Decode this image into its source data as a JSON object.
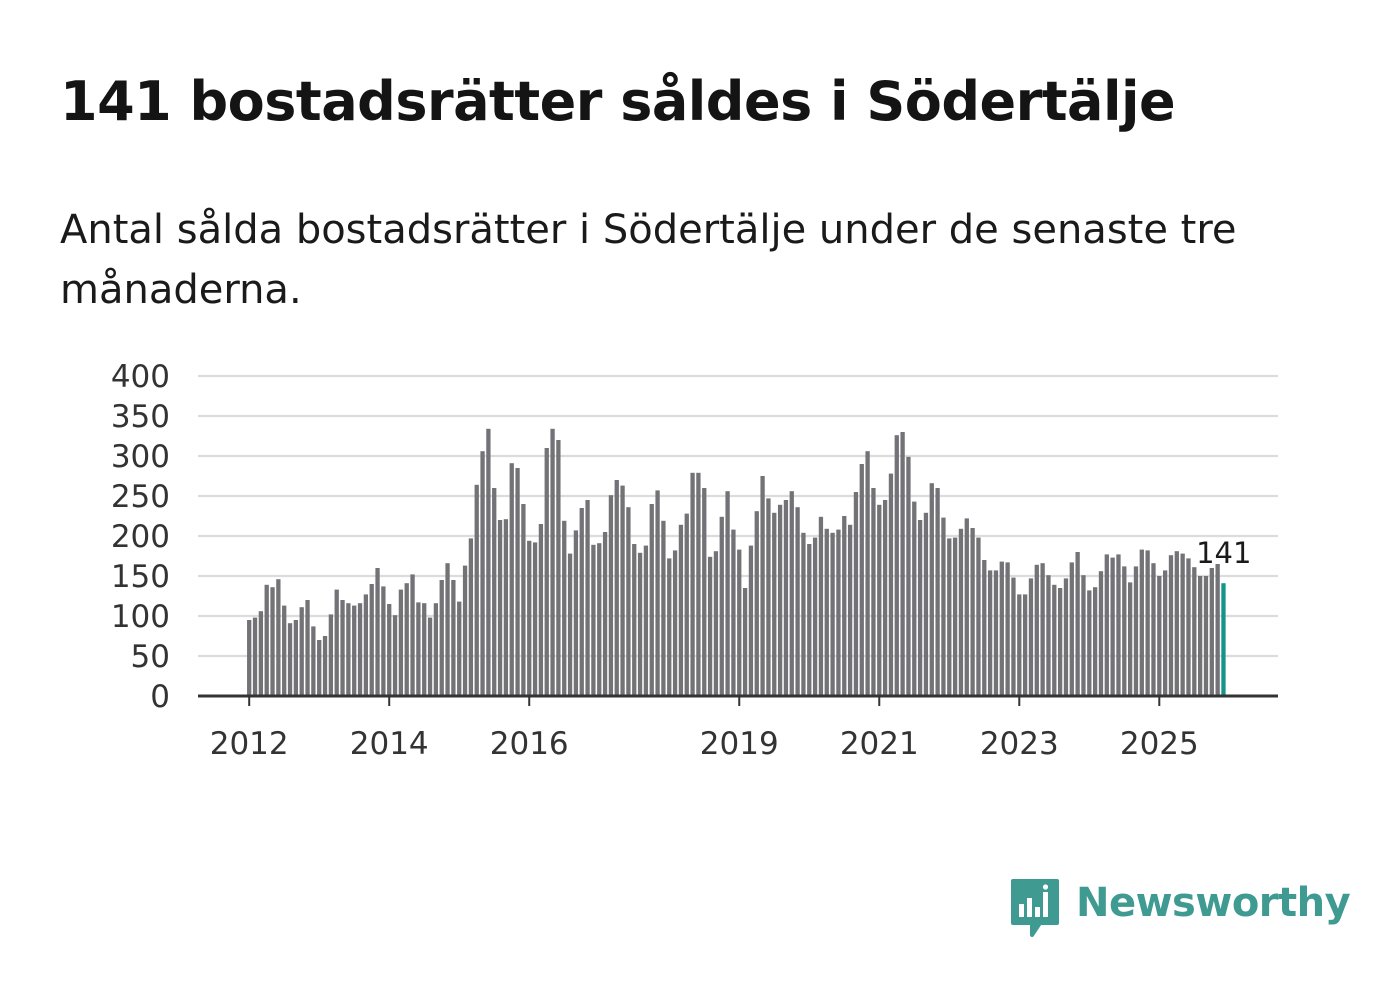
{
  "title": "141 bostadsrätter såldes i Södertälje",
  "subtitle": "Antal sålda bostadsrätter i Södertälje under de senaste tre månaderna.",
  "brand": {
    "name": "Newsworthy",
    "icon": "bar-chart-speech-bubble-icon",
    "color": "#3f9a92"
  },
  "colors": {
    "bar": "#737277",
    "highlight": "#17948a",
    "grid": "#dcdcdc",
    "axis": "#333333"
  },
  "chart_data": {
    "type": "bar",
    "title": "141 bostadsrätter såldes i Södertälje",
    "subtitle": "Antal sålda bostadsrätter i Södertälje under de senaste tre månaderna.",
    "xlabel": "",
    "ylabel": "",
    "ylim": [
      0,
      400
    ],
    "yticks": [
      "0",
      "50",
      "100",
      "150",
      "200",
      "250",
      "300",
      "350",
      "400"
    ],
    "grid": true,
    "legend": "none",
    "start": "2012-01",
    "frequency": "monthly",
    "xtick_labels": [
      "2012",
      "2014",
      "2016",
      "2019",
      "2021",
      "2023",
      "2025"
    ],
    "xtick_indices": [
      0,
      24,
      48,
      84,
      108,
      132,
      156
    ],
    "annotation": {
      "label": "141",
      "index": 167
    },
    "values": [
      95,
      98,
      106,
      139,
      136,
      146,
      113,
      91,
      95,
      111,
      120,
      87,
      70,
      75,
      102,
      133,
      120,
      116,
      113,
      116,
      127,
      140,
      160,
      137,
      115,
      101,
      133,
      141,
      152,
      117,
      116,
      98,
      116,
      145,
      166,
      145,
      118,
      163,
      197,
      264,
      306,
      334,
      260,
      220,
      221,
      291,
      285,
      240,
      194,
      192,
      215,
      310,
      334,
      320,
      219,
      178,
      207,
      235,
      245,
      189,
      191,
      205,
      251,
      270,
      263,
      236,
      190,
      179,
      188,
      240,
      257,
      219,
      172,
      182,
      214,
      228,
      279,
      279,
      260,
      174,
      181,
      224,
      256,
      208,
      183,
      135,
      188,
      231,
      275,
      247,
      229,
      239,
      245,
      256,
      236,
      204,
      190,
      198,
      224,
      209,
      204,
      208,
      225,
      214,
      255,
      290,
      306,
      260,
      239,
      245,
      278,
      326,
      330,
      299,
      243,
      220,
      229,
      266,
      260,
      223,
      197,
      198,
      209,
      222,
      210,
      198,
      170,
      157,
      157,
      168,
      167,
      148,
      127,
      127,
      147,
      164,
      166,
      151,
      139,
      135,
      147,
      167,
      180,
      151,
      132,
      136,
      156,
      177,
      173,
      177,
      162,
      142,
      162,
      183,
      182,
      166,
      150,
      157,
      176,
      181,
      178,
      172,
      161,
      150,
      150,
      160,
      165,
      141
    ]
  }
}
